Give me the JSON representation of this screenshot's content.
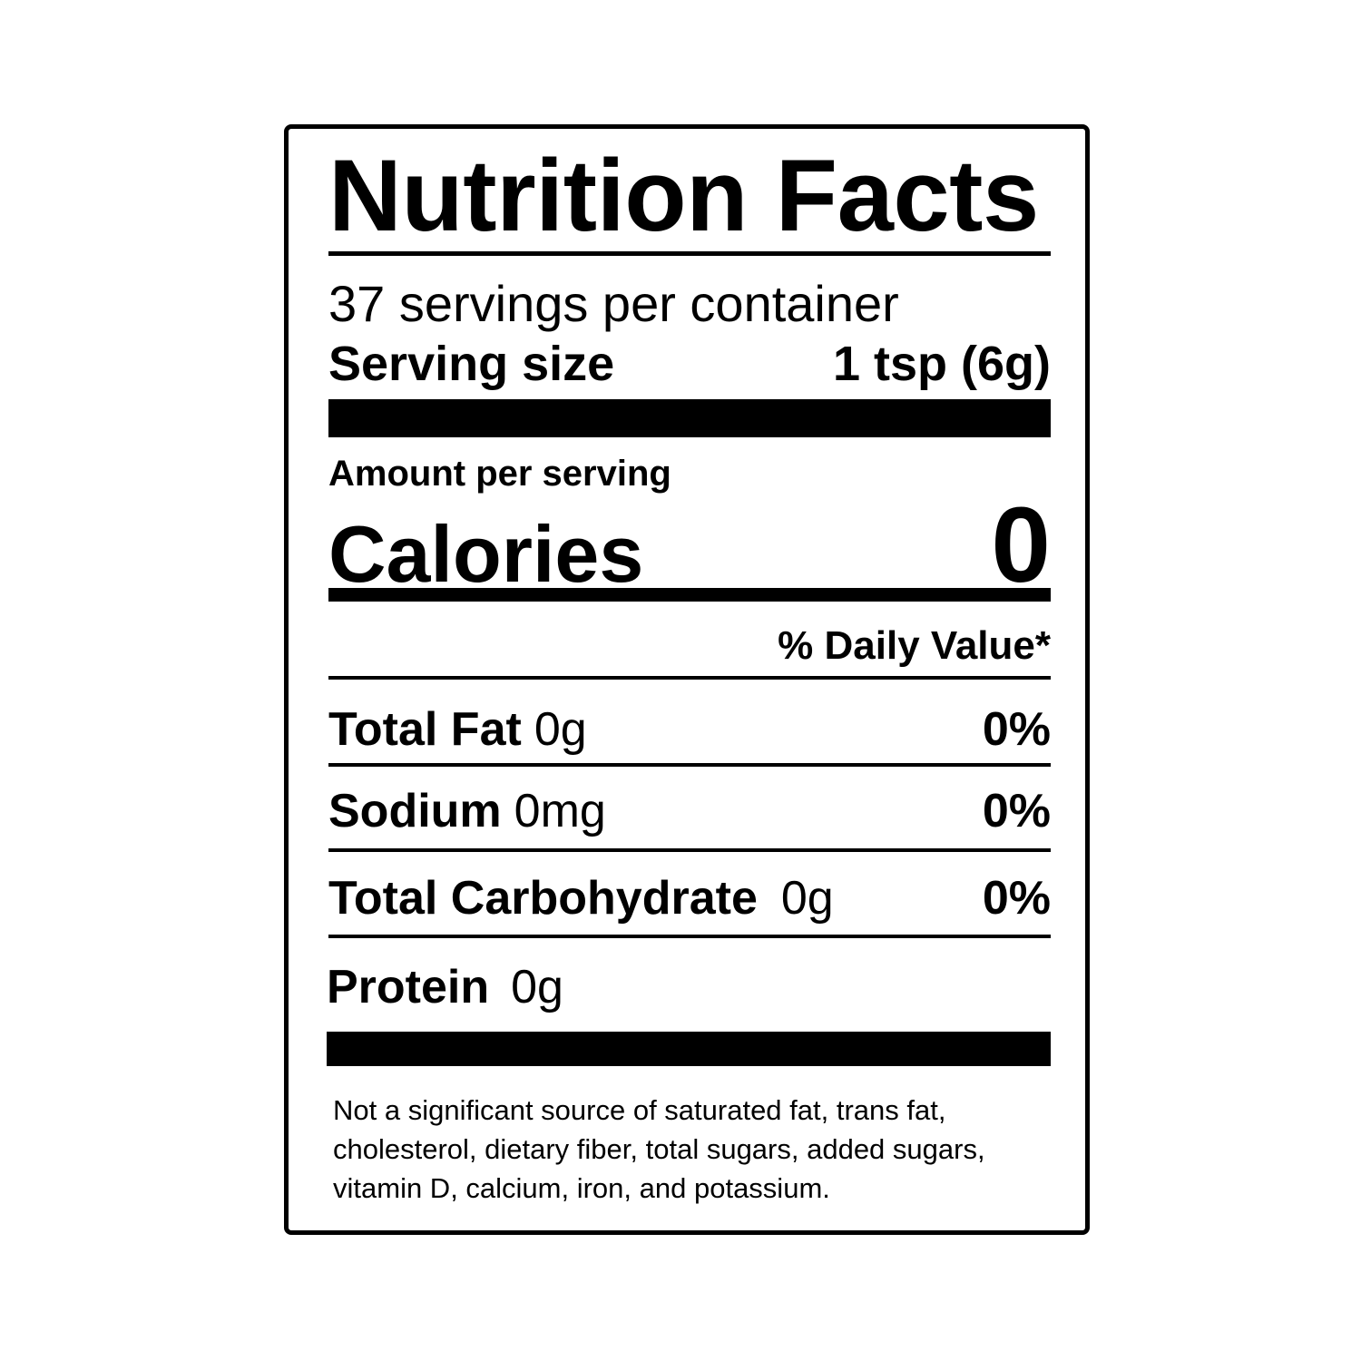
{
  "title": "Nutrition Facts",
  "servings_per_container": "37 servings per container",
  "serving_size": {
    "label": "Serving size",
    "value": "1 tsp (6g)"
  },
  "amount_per_serving": "Amount per serving",
  "calories": {
    "label": "Calories",
    "value": "0"
  },
  "daily_value_header": "% Daily Value*",
  "nutrients": [
    {
      "name": "Total Fat",
      "amount": "0g",
      "dv": "0%"
    },
    {
      "name": "Sodium",
      "amount": "0mg",
      "dv": "0%"
    },
    {
      "name": "Total Carbohydrate",
      "amount": "0g",
      "dv": "0%"
    },
    {
      "name": "Protein",
      "amount": "0g"
    }
  ],
  "footnote": "Not a significant source of saturated fat, trans fat, cholesterol, dietary fiber, total sugars, added sugars, vitamin D, calcium, iron, and potassium."
}
